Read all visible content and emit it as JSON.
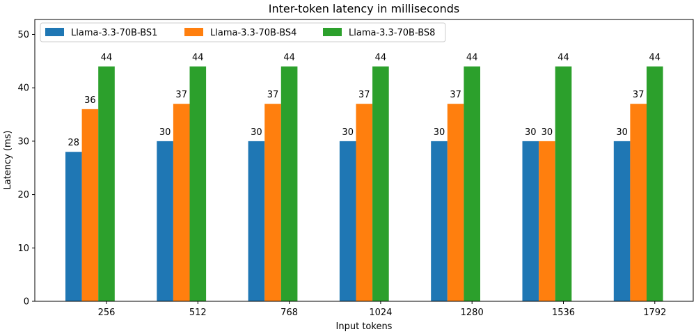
{
  "chart_data": {
    "type": "bar",
    "title": "Inter-token latency in milliseconds",
    "xlabel": "Input tokens",
    "ylabel": "Latency (ms)",
    "categories": [
      "256",
      "512",
      "768",
      "1024",
      "1280",
      "1536",
      "1792"
    ],
    "series": [
      {
        "name": "Llama-3.3-70B-BS1",
        "color": "#1f77b4",
        "values": [
          28,
          30,
          30,
          30,
          30,
          30,
          30
        ]
      },
      {
        "name": "Llama-3.3-70B-BS4",
        "color": "#ff7f0e",
        "values": [
          36,
          37,
          37,
          37,
          37,
          30,
          37
        ]
      },
      {
        "name": "Llama-3.3-70B-BS8",
        "color": "#2ca02c",
        "values": [
          44,
          44,
          44,
          44,
          44,
          44,
          44
        ]
      }
    ],
    "ylim": [
      0,
      52.8
    ],
    "yticks": [
      0,
      10,
      20,
      30,
      40,
      50
    ],
    "grid": false,
    "legend_position": "top-left"
  }
}
